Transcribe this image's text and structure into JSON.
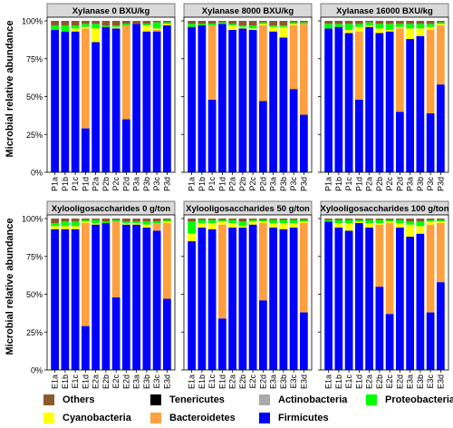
{
  "figure": {
    "ylabel": "Microbial relative abundance",
    "yticks": [
      "0%",
      "25%",
      "50%",
      "75%",
      "100%"
    ]
  },
  "chart_data": [
    {
      "type": "bar",
      "stacked": true,
      "title": "Xylanase 0 BXU/kg",
      "ylim": [
        0,
        100
      ],
      "categories": [
        "P1a",
        "P1b",
        "P1c",
        "P1d",
        "P2a",
        "P2b",
        "P2c",
        "P2d",
        "P3a",
        "P3b",
        "P3c",
        "P3d"
      ],
      "series": [
        {
          "name": "Firmicutes",
          "values": [
            94,
            93,
            93,
            29,
            86,
            96,
            95,
            35,
            98,
            93,
            93,
            97
          ]
        },
        {
          "name": "Bacteroidetes",
          "values": [
            0,
            0,
            0,
            66,
            0,
            0,
            0,
            62,
            0,
            0,
            1,
            0
          ]
        },
        {
          "name": "Cyanobacteria",
          "values": [
            0,
            0,
            2,
            1,
            9,
            0,
            1,
            0,
            0,
            4,
            1,
            1
          ]
        },
        {
          "name": "Proteobacteria",
          "values": [
            3,
            4,
            2,
            2,
            3,
            1,
            1,
            1,
            0,
            1,
            4,
            1
          ]
        },
        {
          "name": "Actinobacteria",
          "values": [
            0,
            0,
            0,
            0,
            0,
            0,
            0,
            0,
            0,
            0,
            0,
            0
          ]
        },
        {
          "name": "Tenericutes",
          "values": [
            0,
            0,
            0,
            0,
            0,
            0,
            0,
            0,
            0,
            0,
            0,
            0
          ]
        },
        {
          "name": "Others",
          "values": [
            3,
            3,
            3,
            2,
            2,
            3,
            3,
            2,
            2,
            2,
            1,
            1
          ]
        }
      ]
    },
    {
      "type": "bar",
      "stacked": true,
      "title": "Xylanase 8000 BXU/kg",
      "ylim": [
        0,
        100
      ],
      "categories": [
        "P1a",
        "P1b",
        "P1c",
        "P1d",
        "P2a",
        "P2b",
        "P2c",
        "P2d",
        "P3a",
        "P3b",
        "P3c",
        "P3d"
      ],
      "series": [
        {
          "name": "Firmicutes",
          "values": [
            96,
            97,
            48,
            98,
            94,
            95,
            94,
            47,
            93,
            89,
            55,
            38
          ]
        },
        {
          "name": "Bacteroidetes",
          "values": [
            0,
            0,
            49,
            0,
            0,
            0,
            0,
            50,
            0,
            0,
            42,
            60
          ]
        },
        {
          "name": "Cyanobacteria",
          "values": [
            0,
            0,
            0,
            0,
            3,
            1,
            1,
            1,
            3,
            7,
            1,
            0
          ]
        },
        {
          "name": "Proteobacteria",
          "values": [
            2,
            1,
            1,
            1,
            1,
            1,
            2,
            1,
            1,
            1,
            1,
            1
          ]
        },
        {
          "name": "Actinobacteria",
          "values": [
            0,
            0,
            0,
            0,
            0,
            0,
            0,
            0,
            0,
            0,
            0,
            0
          ]
        },
        {
          "name": "Tenericutes",
          "values": [
            0,
            0,
            0,
            0,
            0,
            0,
            0,
            0,
            0,
            0,
            0,
            0
          ]
        },
        {
          "name": "Others",
          "values": [
            2,
            2,
            2,
            1,
            2,
            3,
            3,
            1,
            3,
            3,
            1,
            1
          ]
        }
      ]
    },
    {
      "type": "bar",
      "stacked": true,
      "title": "Xylanase 16000 BXU/kg",
      "ylim": [
        0,
        100
      ],
      "categories": [
        "P1a",
        "P1b",
        "P1c",
        "P1d",
        "P2a",
        "P2b",
        "P2c",
        "P2d",
        "P3a",
        "P3b",
        "P3c",
        "P3d"
      ],
      "series": [
        {
          "name": "Firmicutes",
          "values": [
            95,
            96,
            92,
            48,
            96,
            92,
            93,
            40,
            88,
            90,
            39,
            58
          ]
        },
        {
          "name": "Bacteroidetes",
          "values": [
            0,
            0,
            0,
            45,
            0,
            0,
            0,
            55,
            0,
            0,
            55,
            39
          ]
        },
        {
          "name": "Cyanobacteria",
          "values": [
            0,
            0,
            2,
            3,
            1,
            3,
            1,
            1,
            7,
            5,
            2,
            1
          ]
        },
        {
          "name": "Proteobacteria",
          "values": [
            3,
            2,
            4,
            2,
            2,
            3,
            4,
            2,
            3,
            3,
            2,
            1
          ]
        },
        {
          "name": "Actinobacteria",
          "values": [
            0,
            0,
            0,
            0,
            0,
            0,
            0,
            0,
            0,
            0,
            0,
            0
          ]
        },
        {
          "name": "Tenericutes",
          "values": [
            0,
            0,
            0,
            0,
            0,
            0,
            0,
            0,
            0,
            0,
            0,
            0
          ]
        },
        {
          "name": "Others",
          "values": [
            2,
            2,
            2,
            2,
            1,
            2,
            2,
            2,
            2,
            2,
            2,
            1
          ]
        }
      ]
    },
    {
      "type": "bar",
      "stacked": true,
      "title": "Xylooligosaccharides 0 g/ton",
      "ylim": [
        0,
        100
      ],
      "categories": [
        "E1a",
        "E1b",
        "E1c",
        "E1d",
        "E2a",
        "E2b",
        "E2c",
        "E2d",
        "E3a",
        "E3b",
        "E3c",
        "E3d"
      ],
      "series": [
        {
          "name": "Firmicutes",
          "values": [
            93,
            93,
            93,
            29,
            96,
            97,
            48,
            96,
            96,
            94,
            92,
            47
          ]
        },
        {
          "name": "Bacteroidetes",
          "values": [
            0,
            0,
            0,
            68,
            0,
            0,
            50,
            0,
            0,
            0,
            5,
            50
          ]
        },
        {
          "name": "Cyanobacteria",
          "values": [
            2,
            2,
            2,
            1,
            1,
            0,
            0,
            1,
            1,
            2,
            0,
            1
          ]
        },
        {
          "name": "Proteobacteria",
          "values": [
            2,
            3,
            3,
            1,
            2,
            1,
            1,
            1,
            1,
            2,
            1,
            1
          ]
        },
        {
          "name": "Actinobacteria",
          "values": [
            0,
            0,
            0,
            0,
            0,
            0,
            0,
            0,
            0,
            0,
            0,
            0
          ]
        },
        {
          "name": "Tenericutes",
          "values": [
            0,
            0,
            0,
            0,
            0,
            0,
            0,
            0,
            0,
            0,
            0,
            0
          ]
        },
        {
          "name": "Others",
          "values": [
            3,
            2,
            2,
            1,
            1,
            2,
            1,
            2,
            2,
            2,
            2,
            1
          ]
        }
      ]
    },
    {
      "type": "bar",
      "stacked": true,
      "title": "Xylooligosaccharides 50 g/ton",
      "ylim": [
        0,
        100
      ],
      "categories": [
        "E1a",
        "E1b",
        "E1c",
        "E1d",
        "E2a",
        "E2b",
        "E2c",
        "E2d",
        "E3a",
        "E3b",
        "E3c",
        "E3d"
      ],
      "series": [
        {
          "name": "Firmicutes",
          "values": [
            85,
            94,
            93,
            34,
            94,
            94,
            96,
            46,
            94,
            93,
            94,
            38
          ]
        },
        {
          "name": "Bacteroidetes",
          "values": [
            0,
            0,
            0,
            62,
            0,
            0,
            0,
            51,
            0,
            0,
            0,
            59
          ]
        },
        {
          "name": "Cyanobacteria",
          "values": [
            5,
            3,
            4,
            2,
            3,
            1,
            2,
            1,
            3,
            4,
            3,
            1
          ]
        },
        {
          "name": "Proteobacteria",
          "values": [
            8,
            2,
            2,
            1,
            2,
            3,
            1,
            1,
            2,
            2,
            2,
            1
          ]
        },
        {
          "name": "Actinobacteria",
          "values": [
            0,
            0,
            0,
            0,
            0,
            0,
            0,
            0,
            0,
            0,
            0,
            0
          ]
        },
        {
          "name": "Tenericutes",
          "values": [
            0,
            0,
            0,
            0,
            0,
            0,
            0,
            0,
            0,
            0,
            0,
            0
          ]
        },
        {
          "name": "Others",
          "values": [
            2,
            1,
            1,
            1,
            1,
            2,
            1,
            1,
            1,
            1,
            1,
            1
          ]
        }
      ]
    },
    {
      "type": "bar",
      "stacked": true,
      "title": "Xylooligosaccharides 100 g/ton",
      "ylim": [
        0,
        100
      ],
      "categories": [
        "E1a",
        "E1b",
        "E1c",
        "E1d",
        "E2a",
        "E2b",
        "E2c",
        "E2d",
        "E3a",
        "E3b",
        "E3c",
        "E3d"
      ],
      "series": [
        {
          "name": "Firmicutes",
          "values": [
            98,
            94,
            92,
            97,
            94,
            55,
            37,
            94,
            88,
            90,
            38,
            58
          ]
        },
        {
          "name": "Bacteroidetes",
          "values": [
            0,
            0,
            0,
            0,
            0,
            41,
            60,
            0,
            0,
            0,
            58,
            39
          ]
        },
        {
          "name": "Cyanobacteria",
          "values": [
            0,
            3,
            5,
            1,
            3,
            1,
            1,
            3,
            8,
            5,
            2,
            1
          ]
        },
        {
          "name": "Proteobacteria",
          "values": [
            1,
            2,
            2,
            1,
            2,
            2,
            1,
            2,
            2,
            3,
            1,
            1
          ]
        },
        {
          "name": "Actinobacteria",
          "values": [
            0,
            0,
            0,
            0,
            0,
            0,
            0,
            0,
            0,
            0,
            0,
            0
          ]
        },
        {
          "name": "Tenericutes",
          "values": [
            0,
            0,
            0,
            0,
            0,
            0,
            0,
            0,
            0,
            0,
            0,
            0
          ]
        },
        {
          "name": "Others",
          "values": [
            1,
            1,
            1,
            1,
            1,
            1,
            1,
            1,
            2,
            2,
            1,
            1
          ]
        }
      ]
    }
  ],
  "legend": [
    {
      "name": "Others",
      "color": "#8B5A2B"
    },
    {
      "name": "Tenericutes",
      "color": "#000000"
    },
    {
      "name": "Actinobacteria",
      "color": "#A9A9A9"
    },
    {
      "name": "Proteobacteria",
      "color": "#00FF00"
    },
    {
      "name": "Cyanobacteria",
      "color": "#FFFF00"
    },
    {
      "name": "Bacteroidetes",
      "color": "#FFA040"
    },
    {
      "name": "Firmicutes",
      "color": "#0000FF"
    }
  ]
}
